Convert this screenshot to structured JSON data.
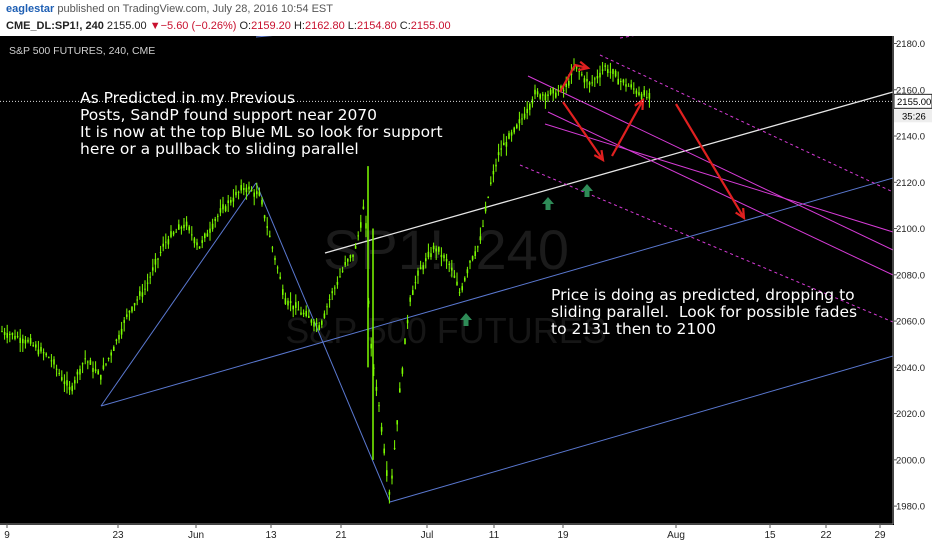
{
  "header": {
    "author": "eaglestar",
    "published_text": "published on TradingView.com, July 28, 2016 10:54 EST",
    "symbol": "CME_DL:SP1!, 240",
    "last": "2155.00",
    "change": "−5.60 (−0.26%)",
    "open_label": "O:",
    "open": "2159.20",
    "high_label": "H:",
    "high": "2162.80",
    "low_label": "L:",
    "low": "2154.80",
    "close_label": "C:",
    "close": "2155.00"
  },
  "chart_data": {
    "type": "candlestick",
    "title": "S&P 500 FUTURES, 240, CME",
    "watermark": [
      "SP1!, 240",
      "S&P 500 FUTURES"
    ],
    "x_ticks": [
      "9",
      "23",
      "Jun",
      "13",
      "21",
      "Jul",
      "11",
      "19",
      "Aug",
      "15",
      "22",
      "29"
    ],
    "y_ticks": [
      1980,
      2000,
      2020,
      2040,
      2060,
      2080,
      2100,
      2120,
      2140,
      2160,
      2180
    ],
    "ylim": [
      1975,
      2183
    ],
    "last_price_label": "2155.00",
    "countdown_label": "35:26",
    "approx_close_path": [
      [
        0,
        2056
      ],
      [
        25,
        2052
      ],
      [
        50,
        2044
      ],
      [
        70,
        2030
      ],
      [
        85,
        2044
      ],
      [
        100,
        2036
      ],
      [
        115,
        2050
      ],
      [
        130,
        2065
      ],
      [
        145,
        2074
      ],
      [
        165,
        2094
      ],
      [
        185,
        2102
      ],
      [
        200,
        2092
      ],
      [
        215,
        2104
      ],
      [
        230,
        2112
      ],
      [
        245,
        2118
      ],
      [
        260,
        2114
      ],
      [
        270,
        2096
      ],
      [
        285,
        2070
      ],
      [
        300,
        2064
      ],
      [
        320,
        2058
      ],
      [
        330,
        2070
      ],
      [
        345,
        2084
      ],
      [
        355,
        2090
      ],
      [
        365,
        2112
      ],
      [
        370,
        2052
      ],
      [
        380,
        2020
      ],
      [
        390,
        1984
      ],
      [
        400,
        2030
      ],
      [
        410,
        2070
      ],
      [
        420,
        2082
      ],
      [
        435,
        2092
      ],
      [
        450,
        2084
      ],
      [
        460,
        2072
      ],
      [
        470,
        2086
      ],
      [
        480,
        2094
      ],
      [
        490,
        2118
      ],
      [
        500,
        2134
      ],
      [
        515,
        2142
      ],
      [
        525,
        2150
      ],
      [
        535,
        2158
      ],
      [
        550,
        2158
      ],
      [
        565,
        2160
      ],
      [
        575,
        2170
      ],
      [
        590,
        2162
      ],
      [
        605,
        2170
      ],
      [
        620,
        2164
      ],
      [
        635,
        2160
      ],
      [
        650,
        2156
      ]
    ],
    "annotations": [
      {
        "lines": [
          "As Predicted in my Previous",
          "Posts, SandP found support near 2070",
          "It is now at the top Blue ML so look for support",
          "here or a pullback to sliding parallel"
        ]
      },
      {
        "lines": [
          "Price is doing as predicted, dropping to",
          "sliding parallel.  Look for possible fades",
          "to 2131 then to 2100"
        ]
      }
    ],
    "colors": {
      "candles": "#7CFC00",
      "blue_lines": "#5a78d0",
      "magenta_lines": "#d63bd6",
      "white_line": "#e6e6e6",
      "red_arrows": "#e02020",
      "green_arrows": "#2e8b57"
    },
    "grid": false
  }
}
